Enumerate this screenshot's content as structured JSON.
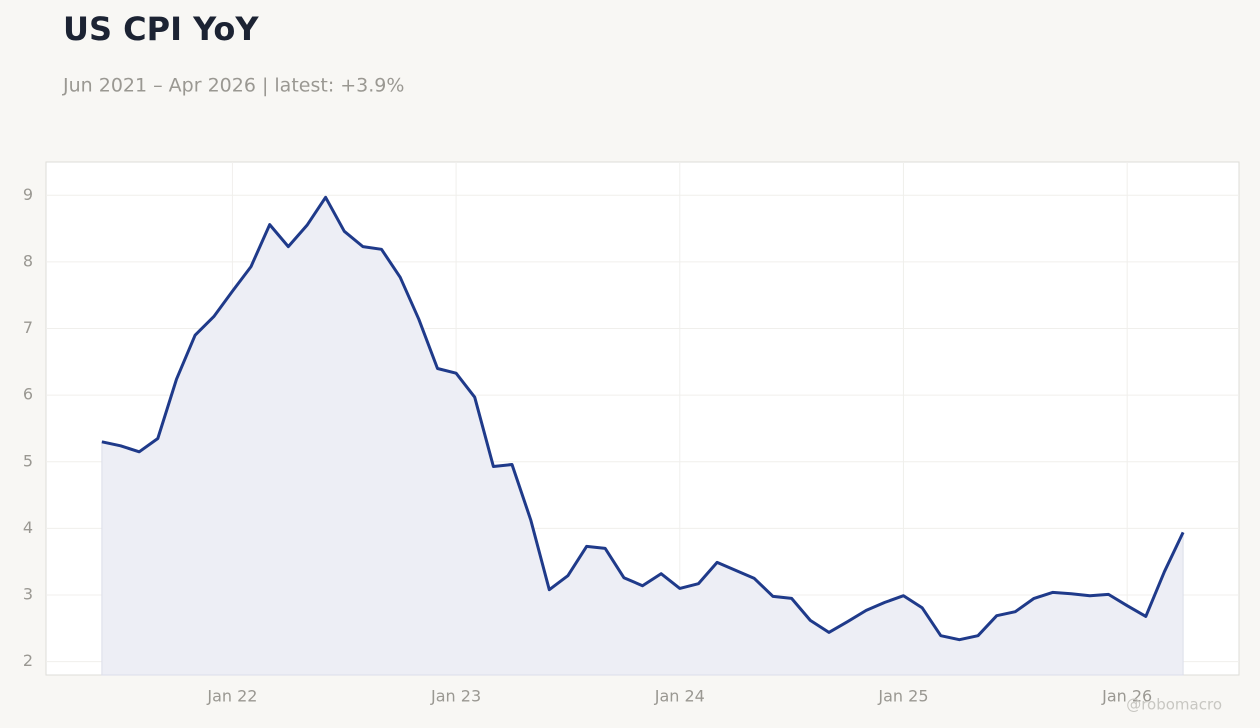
{
  "chart_data": {
    "type": "line",
    "title": "US CPI YoY",
    "subtitle": "Jun 2021 – Apr 2026 | latest: +3.9%",
    "watermark": "@robomacro",
    "x": [
      "2021-06",
      "2021-07",
      "2021-08",
      "2021-09",
      "2021-10",
      "2021-11",
      "2021-12",
      "2022-01",
      "2022-02",
      "2022-03",
      "2022-04",
      "2022-05",
      "2022-06",
      "2022-07",
      "2022-08",
      "2022-09",
      "2022-10",
      "2022-11",
      "2022-12",
      "2023-01",
      "2023-02",
      "2023-03",
      "2023-04",
      "2023-05",
      "2023-06",
      "2023-07",
      "2023-08",
      "2023-09",
      "2023-10",
      "2023-11",
      "2023-12",
      "2024-01",
      "2024-02",
      "2024-03",
      "2024-04",
      "2024-05",
      "2024-06",
      "2024-07",
      "2024-08",
      "2024-09",
      "2024-10",
      "2024-11",
      "2024-12",
      "2025-01",
      "2025-02",
      "2025-03",
      "2025-04",
      "2025-05",
      "2025-06",
      "2025-07",
      "2025-08",
      "2025-09",
      "2025-10",
      "2025-11",
      "2025-12",
      "2026-01",
      "2026-02",
      "2026-03",
      "2026-04"
    ],
    "series": [
      {
        "name": "US CPI YoY",
        "color": "#1f3a8a",
        "fill": "#edeef5",
        "values": [
          5.3,
          5.24,
          5.15,
          5.35,
          6.24,
          6.9,
          7.18,
          7.56,
          7.93,
          8.56,
          8.23,
          8.55,
          8.97,
          8.46,
          8.23,
          8.19,
          7.77,
          7.14,
          6.4,
          6.33,
          5.97,
          4.93,
          4.96,
          4.13,
          3.08,
          3.29,
          3.73,
          3.7,
          3.26,
          3.14,
          3.32,
          3.1,
          3.17,
          3.49,
          3.37,
          3.25,
          2.98,
          2.95,
          2.62,
          2.44,
          2.6,
          2.77,
          2.89,
          2.99,
          2.81,
          2.39,
          2.33,
          2.39,
          2.69,
          2.75,
          2.95,
          3.04,
          3.02,
          2.99,
          3.01,
          2.84,
          2.68,
          3.35,
          3.94
        ]
      }
    ],
    "xlim": [
      "2021-03",
      "2026-07"
    ],
    "xticks": [
      {
        "value": "2022-01",
        "label": "Jan 22"
      },
      {
        "value": "2023-01",
        "label": "Jan 23"
      },
      {
        "value": "2024-01",
        "label": "Jan 24"
      },
      {
        "value": "2025-01",
        "label": "Jan 25"
      },
      {
        "value": "2026-01",
        "label": "Jan 26"
      }
    ],
    "ylim": [
      1.8,
      9.5
    ],
    "yticks": [
      2,
      3,
      4,
      5,
      6,
      7,
      8,
      9
    ],
    "grid": true
  }
}
